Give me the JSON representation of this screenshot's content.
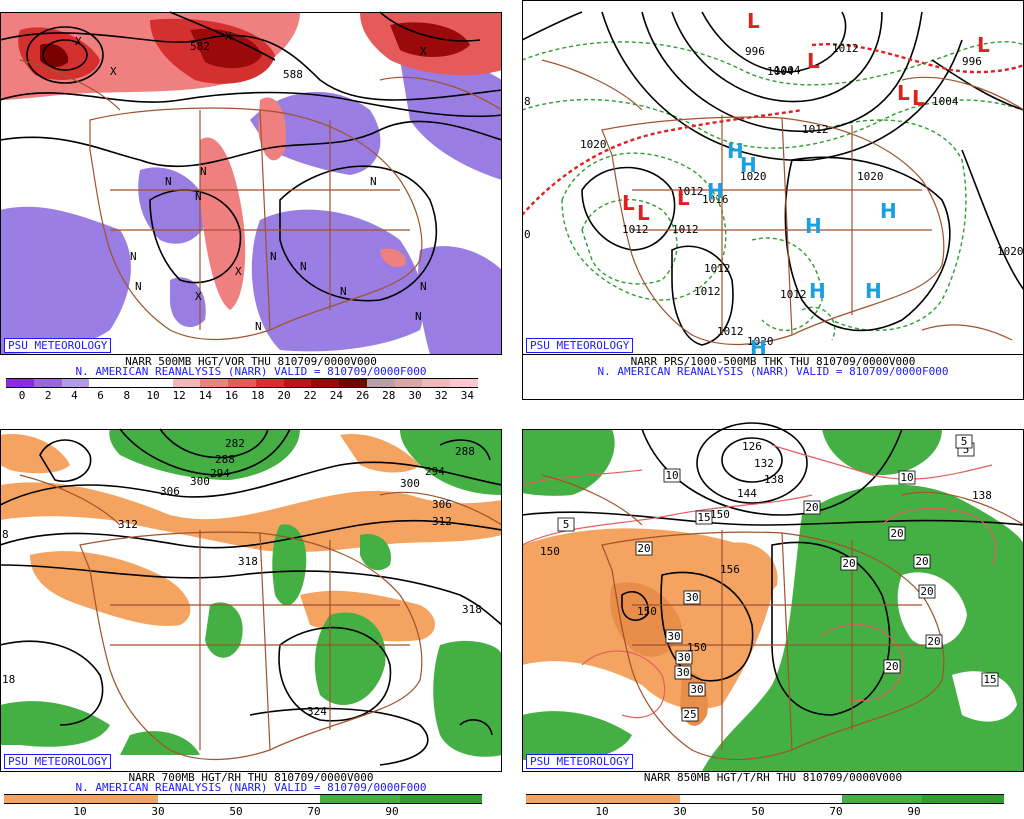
{
  "psu_label": "PSU METEOROLOGY",
  "panels": [
    {
      "line1": "NARR 500MB HGT/VOR THU 810709/0000V000",
      "line2": "N. AMERICAN REANALYSIS (NARR) VALID = 810709/0000F000",
      "colorbar_ticks": [
        "0",
        "2",
        "4",
        "6",
        "8",
        "10",
        "12",
        "14",
        "16",
        "18",
        "20",
        "22",
        "24",
        "26",
        "28",
        "30",
        "32",
        "34"
      ],
      "colorbar_colors": [
        "#8a2be2",
        "#9966dd",
        "#b39be8",
        "#ffffff",
        "#ffffff",
        "#ffffff",
        "#f4b6b6",
        "#f08080",
        "#e65a5a",
        "#d53030",
        "#b81818",
        "#9a0a0a",
        "#7a0000",
        "#b8a0a8",
        "#d9a6a6",
        "#f0b8b8",
        "#ffc8d0"
      ],
      "labels": [
        "582",
        "588",
        "N",
        "N",
        "N",
        "N",
        "N",
        "N",
        "N",
        "N",
        "N",
        "N",
        "N",
        "N",
        "X",
        "X",
        "X",
        "X",
        "X",
        "X"
      ]
    },
    {
      "line1": "NARR PRS/1000-500MB THK THU 810709/0000V000",
      "line2": "N. AMERICAN REANALYSIS (NARR) VALID = 810709/0000F000",
      "labels": [
        "996",
        "1004",
        "1012",
        "1012",
        "1004",
        "1020",
        "1020",
        "1020",
        "1012",
        "1012",
        "1012",
        "1012",
        "1012",
        "1020",
        "1020",
        "1012",
        "1012",
        "1016",
        "1004",
        "996",
        "0",
        "8"
      ],
      "low_letter": "L",
      "high_letter": "H"
    },
    {
      "line1": "NARR 700MB HGT/RH THU 810709/0000V000",
      "line2": "N. AMERICAN REANALYSIS (NARR) VALID = 810709/0000F000",
      "colorbar_ticks": [
        "10",
        "30",
        "50",
        "70",
        "90"
      ],
      "labels": [
        "306",
        "300",
        "294",
        "288",
        "282",
        "312",
        "318",
        "324",
        "300",
        "294",
        "288",
        "306",
        "312",
        "318",
        "18",
        "8"
      ]
    },
    {
      "line1": "NARR 850MB HGT/T/RH THU 810709/0000V000",
      "line2": "",
      "colorbar_ticks": [
        "10",
        "30",
        "50",
        "70",
        "90"
      ],
      "labels": [
        "126",
        "132",
        "138",
        "144",
        "150",
        "156",
        "150",
        "150",
        "150",
        "138"
      ],
      "temp_labels": [
        "10",
        "10",
        "15",
        "20",
        "20",
        "20",
        "20",
        "20",
        "20",
        "20",
        "20",
        "30",
        "30",
        "30",
        "30",
        "30",
        "25",
        "5",
        "5",
        "5",
        "15"
      ]
    }
  ],
  "colors": {
    "land": "#a0522d",
    "dry": "#f4a460",
    "moist": "#2e9e2e",
    "vort_pos": "#e06060",
    "vort_neg": "#9070e0",
    "high": "#1a9fe0",
    "low": "#e02020",
    "psu": "#1a1aff"
  }
}
